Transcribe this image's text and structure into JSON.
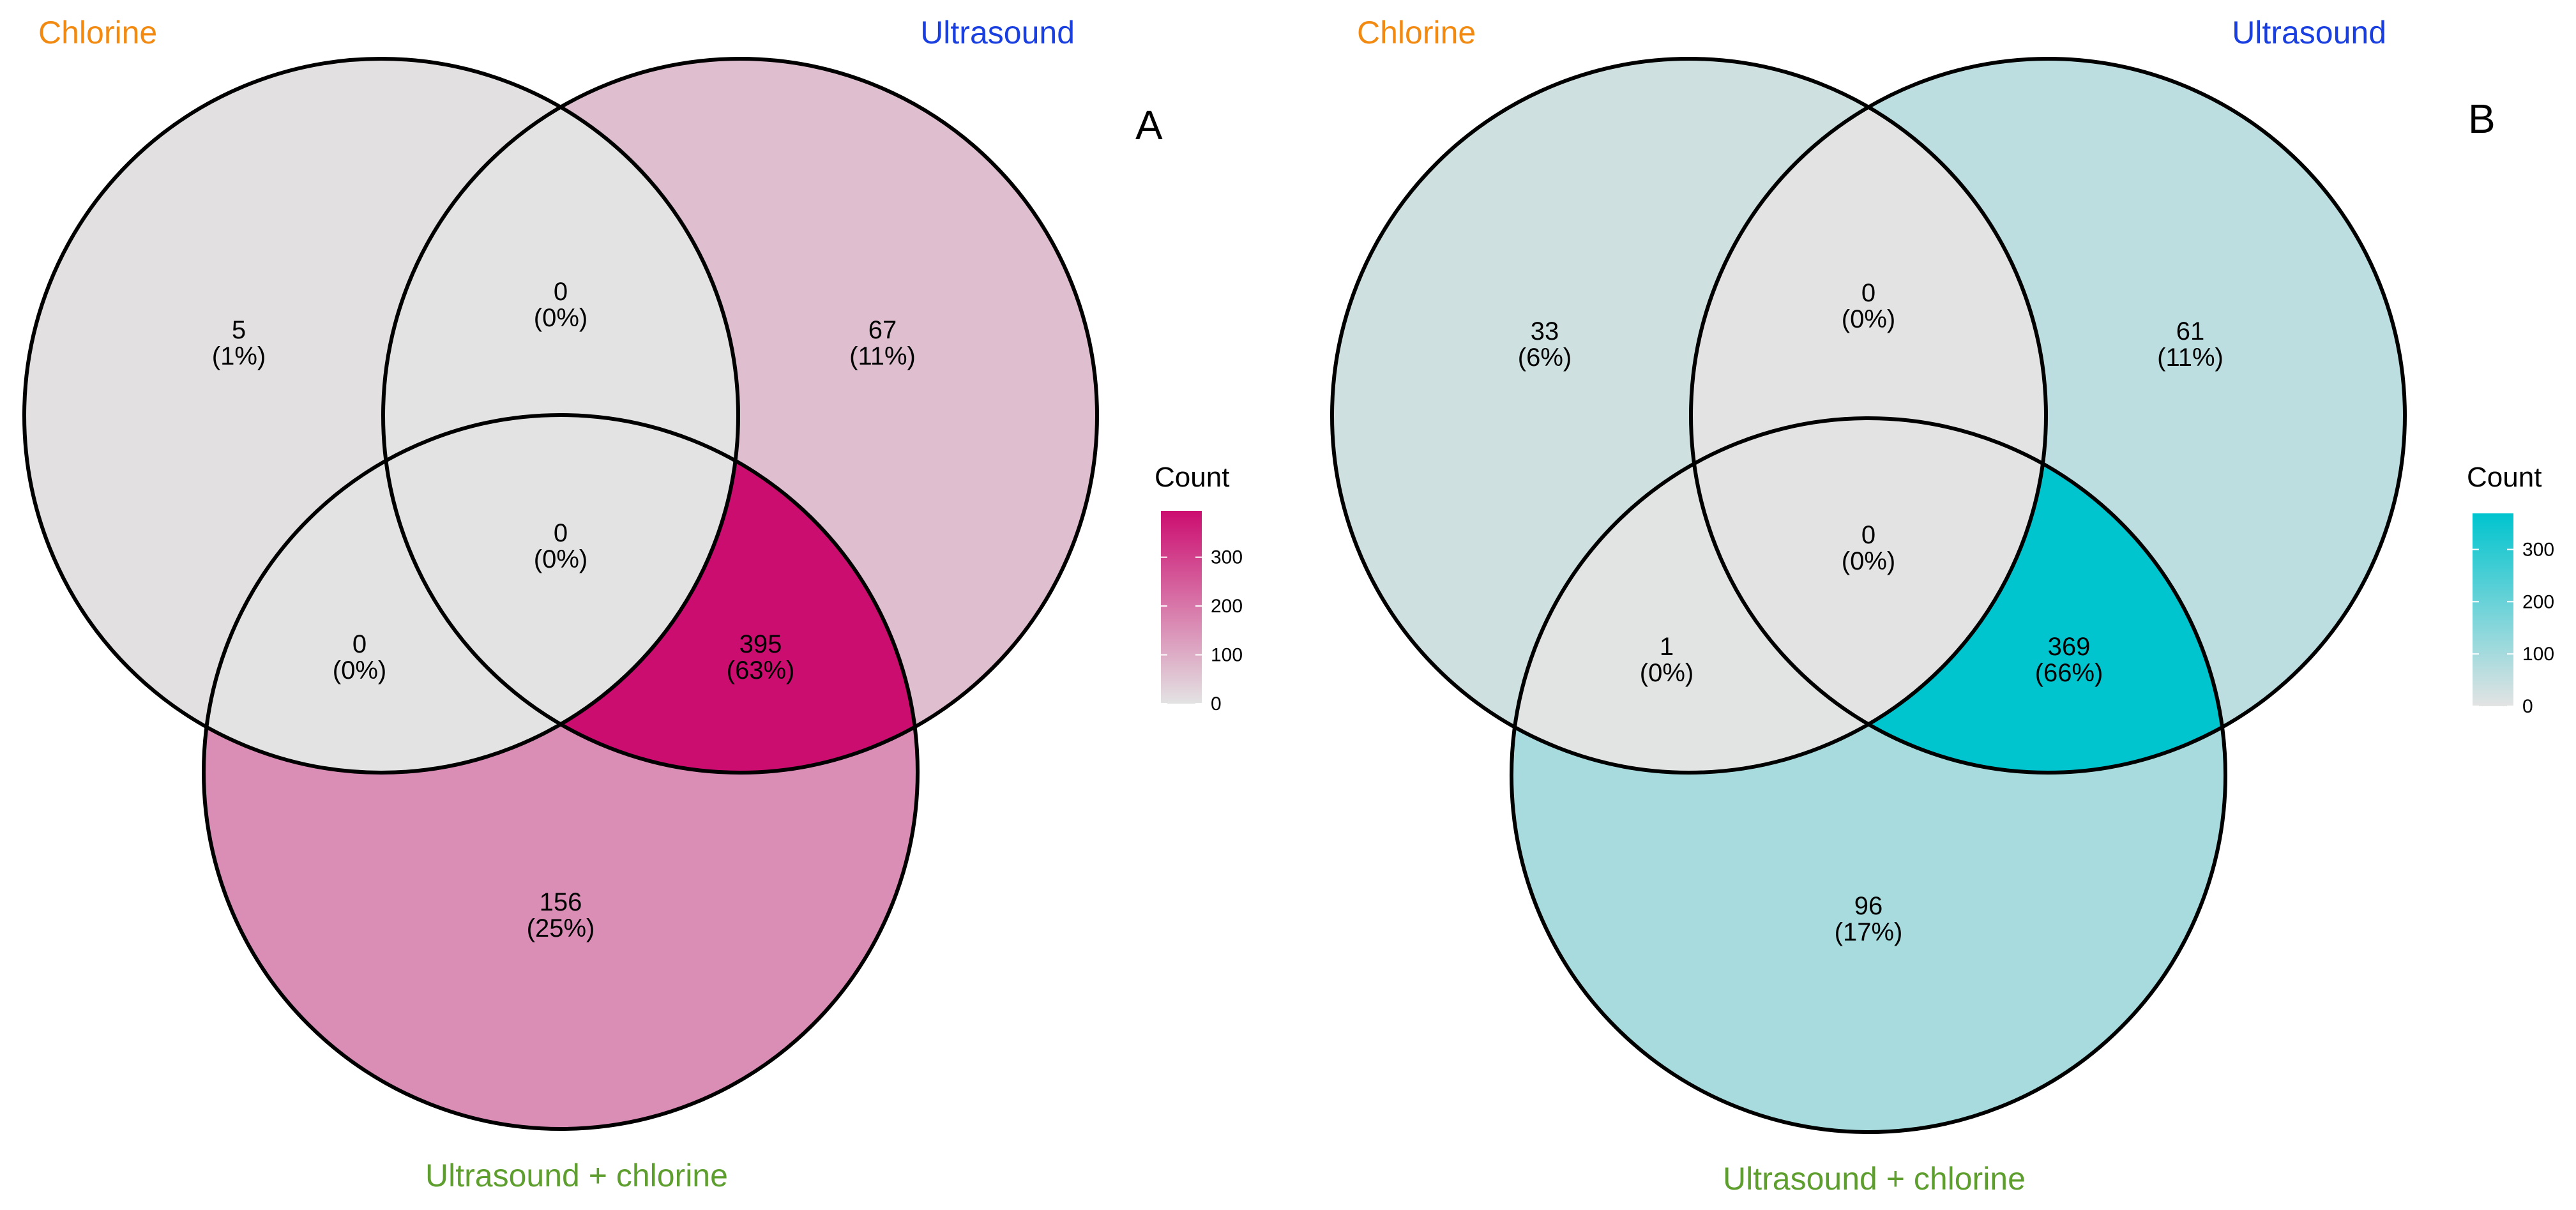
{
  "panels": [
    {
      "letter": "A",
      "sets": [
        {
          "label": "Chlorine",
          "color": "#F28A12"
        },
        {
          "label": "Ultrasound",
          "color": "#1A3FE0"
        },
        {
          "label": "Ultrasound + chlorine",
          "color": "#5E9E2E"
        }
      ],
      "regions": {
        "chlorine_only": {
          "count": "5",
          "pct": "(1%)"
        },
        "ultrasound_only": {
          "count": "67",
          "pct": "(11%)"
        },
        "chlorine_ultrasound": {
          "count": "0",
          "pct": "(0%)"
        },
        "all_three": {
          "count": "0",
          "pct": "(0%)"
        },
        "chlorine_combined": {
          "count": "0",
          "pct": "(0%)"
        },
        "ultrasound_combined": {
          "count": "395",
          "pct": "(63%)"
        },
        "combined_only": {
          "count": "156",
          "pct": "(25%)"
        }
      },
      "legend": {
        "title": "Count",
        "ticks": [
          "300",
          "200",
          "100",
          "0"
        ],
        "max": 395,
        "low_color": "#E3E3E3",
        "high_color": "#CC0D70"
      }
    },
    {
      "letter": "B",
      "sets": [
        {
          "label": "Chlorine",
          "color": "#F28A12"
        },
        {
          "label": "Ultrasound",
          "color": "#1A3FE0"
        },
        {
          "label": "Ultrasound + chlorine",
          "color": "#5E9E2E"
        }
      ],
      "regions": {
        "chlorine_only": {
          "count": "33",
          "pct": "(6%)"
        },
        "ultrasound_only": {
          "count": "61",
          "pct": "(11%)"
        },
        "chlorine_ultrasound": {
          "count": "0",
          "pct": "(0%)"
        },
        "all_three": {
          "count": "0",
          "pct": "(0%)"
        },
        "chlorine_combined": {
          "count": "1",
          "pct": "(0%)"
        },
        "ultrasound_combined": {
          "count": "369",
          "pct": "(66%)"
        },
        "combined_only": {
          "count": "96",
          "pct": "(17%)"
        }
      },
      "legend": {
        "title": "Count",
        "ticks": [
          "300",
          "200",
          "100",
          "0"
        ],
        "max": 369,
        "low_color": "#E3E3E3",
        "high_color": "#00C4CE"
      }
    }
  ]
}
